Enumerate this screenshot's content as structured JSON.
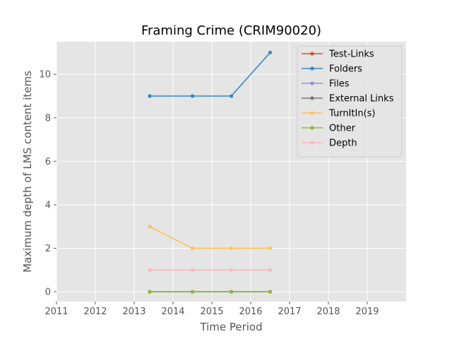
{
  "chart_data": {
    "type": "line",
    "title": "Framing Crime (CRIM90020)",
    "xlabel": "Time Period",
    "ylabel": "Maximum depth of LMS content items",
    "xlim": [
      2011,
      2020
    ],
    "ylim": [
      -0.45,
      11.5
    ],
    "xticks": [
      "2011",
      "2012",
      "2013",
      "2014",
      "2015",
      "2016",
      "2017",
      "2018",
      "2019"
    ],
    "yticks": [
      "0",
      "2",
      "4",
      "6",
      "8",
      "10"
    ],
    "x": [
      2013.4,
      2014.5,
      2015.5,
      2016.5
    ],
    "grid": true,
    "legend_position": "top-right",
    "series": [
      {
        "name": "Test-Links",
        "color": "#E24A33",
        "values": [
          0,
          0,
          0,
          0
        ]
      },
      {
        "name": "Folders",
        "color": "#348ABD",
        "values": [
          9,
          9,
          9,
          11
        ]
      },
      {
        "name": "Files",
        "color": "#988ED5",
        "values": [
          0,
          0,
          0,
          0
        ]
      },
      {
        "name": "External Links",
        "color": "#777777",
        "values": [
          0,
          0,
          0,
          0
        ]
      },
      {
        "name": "TurnItIn(s)",
        "color": "#FBC15E",
        "values": [
          3,
          2,
          2,
          2
        ]
      },
      {
        "name": "Other",
        "color": "#8EBA42",
        "values": [
          0,
          0,
          0,
          0
        ]
      },
      {
        "name": "Depth",
        "color": "#FFB5B8",
        "values": [
          1,
          1,
          1,
          1
        ]
      }
    ]
  }
}
